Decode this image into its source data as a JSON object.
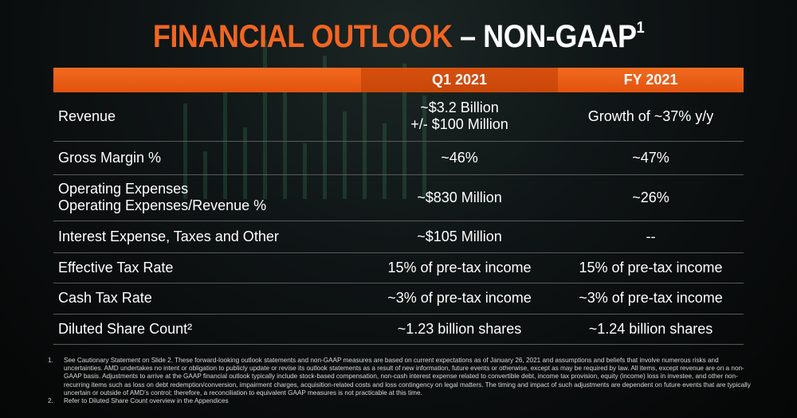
{
  "title": {
    "orange": "FINANCIAL OUTLOOK",
    "white": "– NON-GAAP",
    "sup": "1"
  },
  "table": {
    "headers": [
      "",
      "Q1 2021",
      "FY 2021"
    ],
    "rows": [
      {
        "label": [
          "Revenue"
        ],
        "q1": [
          "~$3.2 Billion",
          "+/- $100 Million"
        ],
        "fy": [
          "Growth of ~37% y/y"
        ]
      },
      {
        "label": [
          "Gross Margin %"
        ],
        "q1": [
          "~46%"
        ],
        "fy": [
          "~47%"
        ]
      },
      {
        "label": [
          "Operating Expenses",
          "Operating Expenses/Revenue %"
        ],
        "q1": [
          "~$830 Million"
        ],
        "fy": [
          "~26%"
        ]
      },
      {
        "label": [
          "Interest Expense, Taxes and Other"
        ],
        "q1": [
          "~$105 Million"
        ],
        "fy": [
          "--"
        ]
      },
      {
        "label": [
          "Effective Tax Rate"
        ],
        "q1": [
          "15% of pre-tax income"
        ],
        "fy": [
          "15% of pre-tax income"
        ]
      },
      {
        "label": [
          "Cash Tax Rate"
        ],
        "q1": [
          "~3% of pre-tax income"
        ],
        "fy": [
          "~3% of pre-tax income"
        ]
      },
      {
        "label": [
          "Diluted Share Count²"
        ],
        "q1": [
          "~1.23 billion shares"
        ],
        "fy": [
          "~1.24 billion shares"
        ]
      }
    ]
  },
  "footnotes": [
    {
      "num": "1.",
      "text": "See Cautionary Statement on Slide 2. These forward-looking outlook statements and non-GAAP measures are based on current expectations as of January 26, 2021 and assumptions and beliefs that involve numerous risks and uncertainties. AMD undertakes no intent or obligation to publicly update or revise its outlook statements as a result of new information, future events or otherwise, except as may be required by law.  All items, except revenue are on a non-GAAP basis. Adjustments to arrive at the GAAP financial outlook typically include stock-based compensation, non-cash interest expense related to convertible debt, income tax provision, equity (income) loss in investee, and other non-recurring items such as loss on debt redemption/conversion, impairment charges, acquisition-related costs and loss contingency on legal matters. The timing and impact of such adjustments are dependent on future events that  are typically uncertain or outside of AMD’s control; therefore, a reconciliation to equivalent GAAP measures is not practicable at this time."
    },
    {
      "num": "2.",
      "text": "Refer to Diluted Share Count overview in the Appendices"
    }
  ],
  "colors": {
    "accent": "#f26522",
    "header_bar": "#e85d16",
    "background": "#0b0d0e"
  }
}
